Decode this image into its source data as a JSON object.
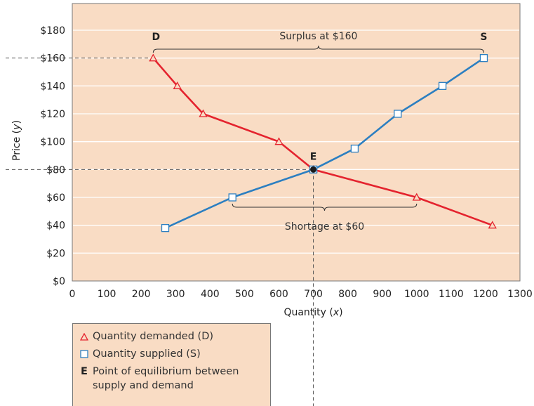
{
  "chart_data": {
    "type": "line",
    "xlabel": "Quantity (x)",
    "ylabel": "Price (y)",
    "xlim": [
      0,
      1300
    ],
    "ylim": [
      0,
      180
    ],
    "x_ticks": [
      0,
      100,
      200,
      300,
      400,
      500,
      600,
      700,
      800,
      900,
      1000,
      1100,
      1200,
      1300
    ],
    "y_ticks": [
      0,
      20,
      40,
      60,
      80,
      100,
      120,
      140,
      160,
      180
    ],
    "y_tick_labels": [
      "$0",
      "$20",
      "$40",
      "$60",
      "$80",
      "$100",
      "$120",
      "$140",
      "$160",
      "$180"
    ],
    "grid": "horizontal",
    "series": [
      {
        "name": "Quantity demanded (D)",
        "label": "D",
        "color": "#e4232e",
        "marker": "triangle",
        "points": [
          [
            235,
            160
          ],
          [
            305,
            140
          ],
          [
            380,
            120
          ],
          [
            600,
            100
          ],
          [
            700,
            80
          ],
          [
            1000,
            60
          ],
          [
            1220,
            40
          ]
        ]
      },
      {
        "name": "Quantity supplied (S)",
        "label": "S",
        "color": "#2c7fc1",
        "marker": "square",
        "points": [
          [
            270,
            38
          ],
          [
            465,
            60
          ],
          [
            700,
            80
          ],
          [
            820,
            95
          ],
          [
            945,
            120
          ],
          [
            1075,
            140
          ],
          [
            1195,
            160
          ]
        ]
      }
    ],
    "equilibrium": {
      "label": "E",
      "x": 700,
      "y": 80
    },
    "annotations": [
      {
        "text": "Surplus at $160",
        "price": 160,
        "x_from": 235,
        "x_to": 1195
      },
      {
        "text": "Shortage at $60",
        "price": 60,
        "x_from": 465,
        "x_to": 1000
      }
    ],
    "reference_lines": [
      {
        "type": "horizontal",
        "y": 160
      },
      {
        "type": "horizontal",
        "y": 80
      },
      {
        "type": "vertical",
        "x": 700
      }
    ]
  },
  "legend": {
    "demanded": "Quantity demanded (D)",
    "supplied": "Quantity supplied (S)",
    "equilibrium_key": "E",
    "equilibrium_text_1": "Point of equilibrium between",
    "equilibrium_text_2": "supply and demand"
  },
  "colors": {
    "plot_background": "#f9dcc4",
    "demand": "#e4232e",
    "supply": "#2c7fc1",
    "dashed": "#555555"
  }
}
